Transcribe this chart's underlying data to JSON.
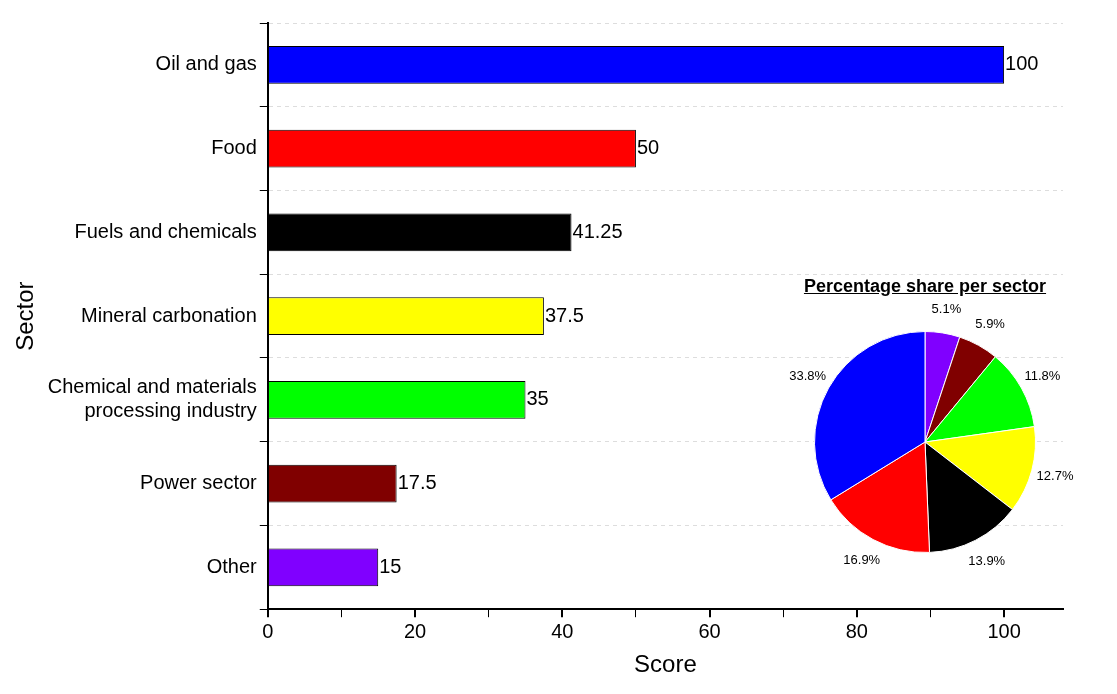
{
  "chart_data": [
    {
      "type": "bar",
      "orientation": "horizontal",
      "xlabel": "Score",
      "ylabel": "Sector",
      "categories": [
        "Oil and gas",
        "Food",
        "Fuels and chemicals",
        "Mineral carbonation",
        "Chemical and materials processing industry",
        "Power sector",
        "Other"
      ],
      "values": [
        100,
        50,
        41.25,
        37.5,
        35,
        17.5,
        15
      ],
      "colors": [
        "#0000ff",
        "#ff0000",
        "#000000",
        "#ffff00",
        "#00ff00",
        "#800000",
        "#8000ff"
      ],
      "xlim": [
        0,
        108
      ],
      "xticks": [
        0,
        {
          "value": 10,
          "label": null
        },
        20,
        {
          "value": 30,
          "label": null
        },
        40,
        {
          "value": 50,
          "label": null
        },
        60,
        {
          "value": 70,
          "label": null
        },
        80,
        {
          "value": 90,
          "label": null
        },
        100
      ],
      "grid": "y",
      "data_labels": true,
      "legend": false
    },
    {
      "type": "pie",
      "title": "Percentage share per sector",
      "categories": [
        null,
        null,
        null,
        null,
        null,
        null,
        null
      ],
      "values": [
        5.1,
        5.9,
        11.8,
        12.7,
        13.9,
        16.9,
        33.8
      ],
      "colors": [
        "#8000ff",
        "#800000",
        "#00ff00",
        "#ffff00",
        "#000000",
        "#ff0000",
        "#0000ff"
      ],
      "value_labels": [
        "5.1%",
        "5.9%",
        "11.8%",
        "12.7%",
        "13.9%",
        "16.9%",
        "33.8%"
      ],
      "legend": false
    }
  ]
}
